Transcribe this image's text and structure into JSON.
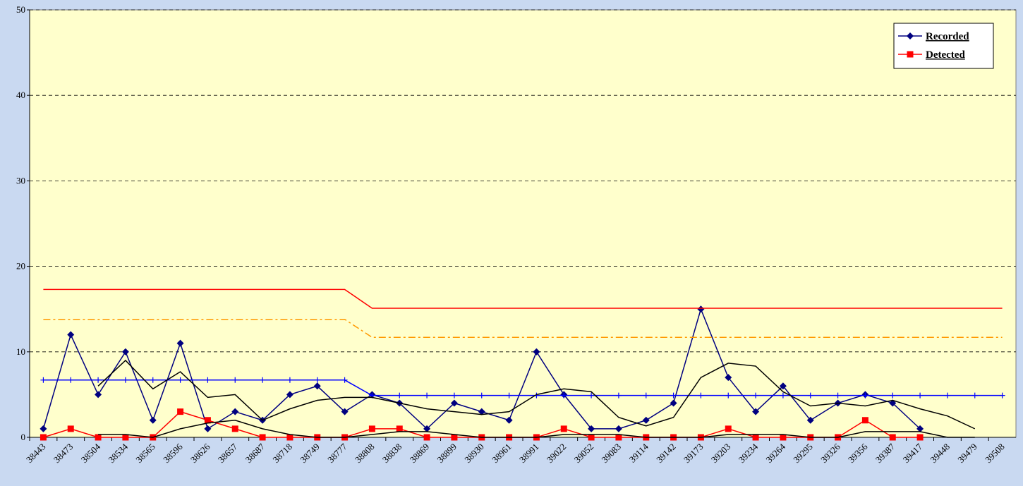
{
  "chart_data": {
    "type": "line",
    "categories": [
      "38443",
      "38473",
      "38504",
      "38534",
      "38565",
      "38596",
      "38626",
      "38657",
      "38687",
      "38718",
      "38749",
      "38777",
      "38808",
      "38838",
      "38869",
      "38899",
      "38930",
      "38961",
      "38991",
      "39022",
      "39052",
      "39083",
      "39114",
      "39142",
      "39173",
      "39203",
      "39234",
      "39264",
      "39295",
      "39326",
      "39356",
      "39387",
      "39417",
      "39448",
      "39479",
      "39508"
    ],
    "series": [
      {
        "name": "Recorded",
        "color": "#000080",
        "marker": "diamond",
        "values": [
          1,
          12,
          5,
          10,
          2,
          11,
          1,
          3,
          2,
          5,
          6,
          3,
          5,
          4,
          1,
          4,
          3,
          2,
          10,
          5,
          1,
          1,
          2,
          4,
          15,
          7,
          3,
          6,
          2,
          4,
          5,
          4,
          1,
          null,
          null,
          null
        ]
      },
      {
        "name": "Detected",
        "color": "#ff0000",
        "marker": "square",
        "values": [
          0,
          1,
          0,
          0,
          0,
          3,
          2,
          1,
          0,
          0,
          0,
          0,
          1,
          1,
          0,
          0,
          0,
          0,
          0,
          1,
          0,
          0,
          0,
          0,
          0,
          1,
          0,
          0,
          0,
          0,
          2,
          0,
          0,
          null,
          null,
          null
        ]
      },
      {
        "color": "#0000ff",
        "marker": "plus",
        "values": [
          6.7,
          6.7,
          6.7,
          6.7,
          6.7,
          6.7,
          6.7,
          6.7,
          6.7,
          6.7,
          6.7,
          6.7,
          4.9,
          4.9,
          4.9,
          4.9,
          4.9,
          4.9,
          4.9,
          4.9,
          4.9,
          4.9,
          4.9,
          4.9,
          4.9,
          4.9,
          4.9,
          4.9,
          4.9,
          4.9,
          4.9,
          4.9,
          4.9,
          4.9,
          4.9,
          4.9
        ]
      },
      {
        "color": "#ff0000",
        "values": [
          17.3,
          17.3,
          17.3,
          17.3,
          17.3,
          17.3,
          17.3,
          17.3,
          17.3,
          17.3,
          17.3,
          17.3,
          15.1,
          15.1,
          15.1,
          15.1,
          15.1,
          15.1,
          15.1,
          15.1,
          15.1,
          15.1,
          15.1,
          15.1,
          15.1,
          15.1,
          15.1,
          15.1,
          15.1,
          15.1,
          15.1,
          15.1,
          15.1,
          15.1,
          15.1,
          15.1
        ]
      },
      {
        "color": "#ff9900",
        "dash": "dashdot",
        "values": [
          13.8,
          13.8,
          13.8,
          13.8,
          13.8,
          13.8,
          13.8,
          13.8,
          13.8,
          13.8,
          13.8,
          13.8,
          11.7,
          11.7,
          11.7,
          11.7,
          11.7,
          11.7,
          11.7,
          11.7,
          11.7,
          11.7,
          11.7,
          11.7,
          11.7,
          11.7,
          11.7,
          11.7,
          11.7,
          11.7,
          11.7,
          11.7,
          11.7,
          11.7,
          11.7,
          11.7
        ]
      },
      {
        "color": "#000000",
        "values": [
          null,
          null,
          6,
          9,
          5.67,
          7.67,
          4.67,
          5,
          2,
          3.33,
          4.33,
          4.67,
          4.67,
          4,
          3.33,
          3,
          2.67,
          3,
          5,
          5.67,
          5.33,
          2.33,
          1.33,
          2.33,
          7,
          8.67,
          8.33,
          5.33,
          3.67,
          4,
          3.67,
          4.33,
          3.33,
          2.5,
          1,
          null
        ]
      },
      {
        "color": "#000000",
        "values": [
          null,
          null,
          0.33,
          0.33,
          0,
          1,
          1.67,
          2,
          1,
          0.33,
          0,
          0,
          0.33,
          0.67,
          0.67,
          0.33,
          0,
          0,
          0,
          0.33,
          0.33,
          0.33,
          0,
          0,
          0,
          0.33,
          0.33,
          0.33,
          0,
          0,
          0.67,
          0.67,
          0.67,
          0,
          0,
          null
        ]
      }
    ],
    "ylim": [
      0,
      50
    ],
    "yticks": [
      0,
      10,
      20,
      30,
      40,
      50
    ],
    "grid": true,
    "legend": "top-right",
    "plot_background": "#ffffcc"
  }
}
